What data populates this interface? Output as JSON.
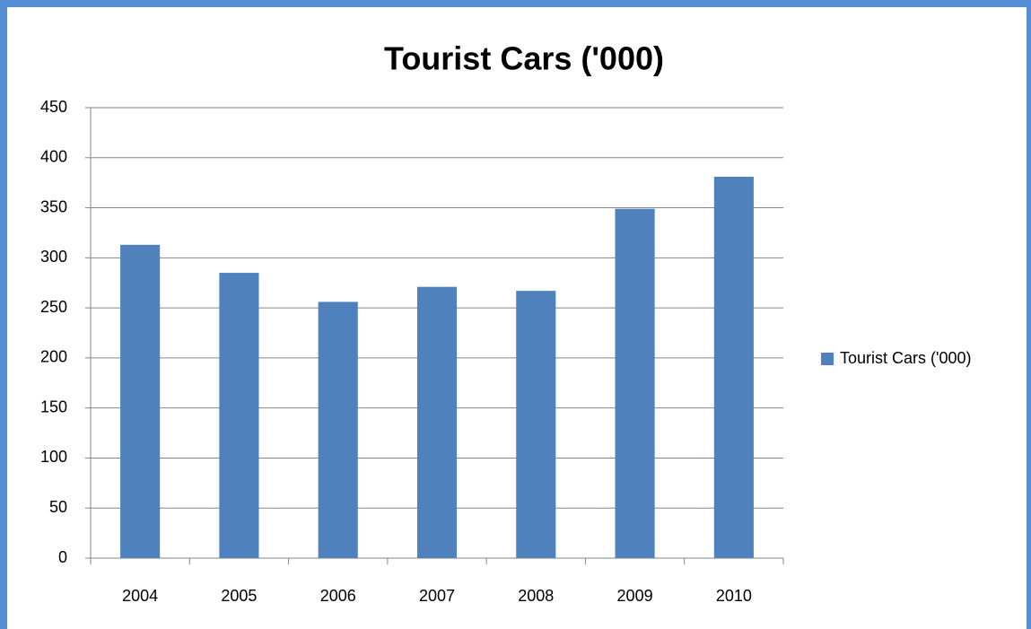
{
  "chart_data": {
    "type": "bar",
    "title": "Tourist Cars ('000)",
    "categories": [
      "2004",
      "2005",
      "2006",
      "2007",
      "2008",
      "2009",
      "2010"
    ],
    "series": [
      {
        "name": "Tourist Cars ('000)",
        "color": "#4f81bd",
        "values": [
          313,
          285,
          256,
          271,
          267,
          349,
          381
        ]
      }
    ],
    "ylim": [
      0,
      450
    ],
    "yticks": [
      0,
      50,
      100,
      150,
      200,
      250,
      300,
      350,
      400,
      450
    ],
    "grid": true,
    "legend": "right"
  }
}
